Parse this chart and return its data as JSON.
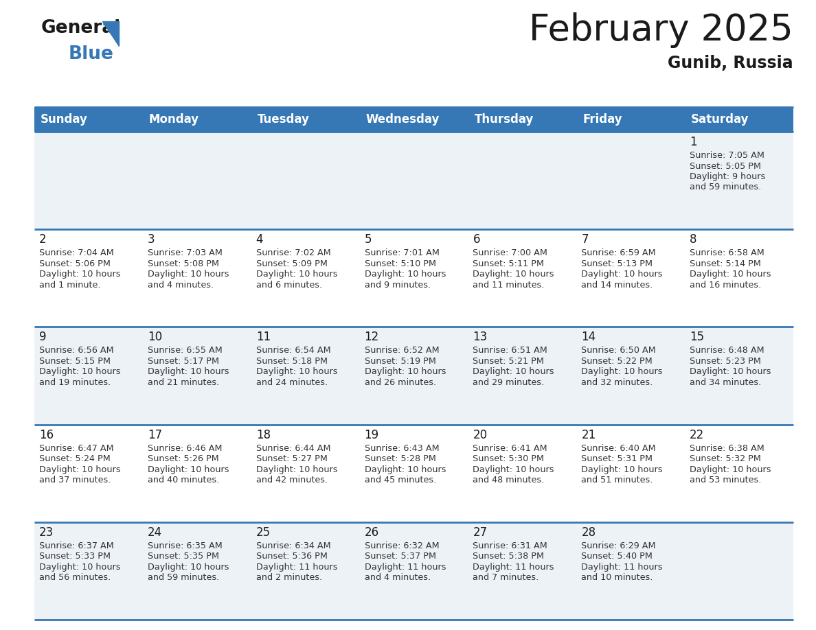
{
  "title": "February 2025",
  "subtitle": "Gunib, Russia",
  "header_bg_color": "#3578b5",
  "header_text_color": "#ffffff",
  "title_color": "#1a1a1a",
  "subtitle_color": "#1a1a1a",
  "cell_bg_light": "#edf2f7",
  "cell_bg_white": "#ffffff",
  "day_number_color": "#1a1a1a",
  "info_text_color": "#333333",
  "border_color": "#3578b5",
  "logo_black": "#1a1a1a",
  "logo_blue": "#3578b5",
  "weekdays": [
    "Sunday",
    "Monday",
    "Tuesday",
    "Wednesday",
    "Thursday",
    "Friday",
    "Saturday"
  ],
  "days": [
    {
      "day": 1,
      "col": 6,
      "row": 0,
      "sunrise": "7:05 AM",
      "sunset": "5:05 PM",
      "daylight_hrs": 9,
      "daylight_min": 59
    },
    {
      "day": 2,
      "col": 0,
      "row": 1,
      "sunrise": "7:04 AM",
      "sunset": "5:06 PM",
      "daylight_hrs": 10,
      "daylight_min": 1
    },
    {
      "day": 3,
      "col": 1,
      "row": 1,
      "sunrise": "7:03 AM",
      "sunset": "5:08 PM",
      "daylight_hrs": 10,
      "daylight_min": 4
    },
    {
      "day": 4,
      "col": 2,
      "row": 1,
      "sunrise": "7:02 AM",
      "sunset": "5:09 PM",
      "daylight_hrs": 10,
      "daylight_min": 6
    },
    {
      "day": 5,
      "col": 3,
      "row": 1,
      "sunrise": "7:01 AM",
      "sunset": "5:10 PM",
      "daylight_hrs": 10,
      "daylight_min": 9
    },
    {
      "day": 6,
      "col": 4,
      "row": 1,
      "sunrise": "7:00 AM",
      "sunset": "5:11 PM",
      "daylight_hrs": 10,
      "daylight_min": 11
    },
    {
      "day": 7,
      "col": 5,
      "row": 1,
      "sunrise": "6:59 AM",
      "sunset": "5:13 PM",
      "daylight_hrs": 10,
      "daylight_min": 14
    },
    {
      "day": 8,
      "col": 6,
      "row": 1,
      "sunrise": "6:58 AM",
      "sunset": "5:14 PM",
      "daylight_hrs": 10,
      "daylight_min": 16
    },
    {
      "day": 9,
      "col": 0,
      "row": 2,
      "sunrise": "6:56 AM",
      "sunset": "5:15 PM",
      "daylight_hrs": 10,
      "daylight_min": 19
    },
    {
      "day": 10,
      "col": 1,
      "row": 2,
      "sunrise": "6:55 AM",
      "sunset": "5:17 PM",
      "daylight_hrs": 10,
      "daylight_min": 21
    },
    {
      "day": 11,
      "col": 2,
      "row": 2,
      "sunrise": "6:54 AM",
      "sunset": "5:18 PM",
      "daylight_hrs": 10,
      "daylight_min": 24
    },
    {
      "day": 12,
      "col": 3,
      "row": 2,
      "sunrise": "6:52 AM",
      "sunset": "5:19 PM",
      "daylight_hrs": 10,
      "daylight_min": 26
    },
    {
      "day": 13,
      "col": 4,
      "row": 2,
      "sunrise": "6:51 AM",
      "sunset": "5:21 PM",
      "daylight_hrs": 10,
      "daylight_min": 29
    },
    {
      "day": 14,
      "col": 5,
      "row": 2,
      "sunrise": "6:50 AM",
      "sunset": "5:22 PM",
      "daylight_hrs": 10,
      "daylight_min": 32
    },
    {
      "day": 15,
      "col": 6,
      "row": 2,
      "sunrise": "6:48 AM",
      "sunset": "5:23 PM",
      "daylight_hrs": 10,
      "daylight_min": 34
    },
    {
      "day": 16,
      "col": 0,
      "row": 3,
      "sunrise": "6:47 AM",
      "sunset": "5:24 PM",
      "daylight_hrs": 10,
      "daylight_min": 37
    },
    {
      "day": 17,
      "col": 1,
      "row": 3,
      "sunrise": "6:46 AM",
      "sunset": "5:26 PM",
      "daylight_hrs": 10,
      "daylight_min": 40
    },
    {
      "day": 18,
      "col": 2,
      "row": 3,
      "sunrise": "6:44 AM",
      "sunset": "5:27 PM",
      "daylight_hrs": 10,
      "daylight_min": 42
    },
    {
      "day": 19,
      "col": 3,
      "row": 3,
      "sunrise": "6:43 AM",
      "sunset": "5:28 PM",
      "daylight_hrs": 10,
      "daylight_min": 45
    },
    {
      "day": 20,
      "col": 4,
      "row": 3,
      "sunrise": "6:41 AM",
      "sunset": "5:30 PM",
      "daylight_hrs": 10,
      "daylight_min": 48
    },
    {
      "day": 21,
      "col": 5,
      "row": 3,
      "sunrise": "6:40 AM",
      "sunset": "5:31 PM",
      "daylight_hrs": 10,
      "daylight_min": 51
    },
    {
      "day": 22,
      "col": 6,
      "row": 3,
      "sunrise": "6:38 AM",
      "sunset": "5:32 PM",
      "daylight_hrs": 10,
      "daylight_min": 53
    },
    {
      "day": 23,
      "col": 0,
      "row": 4,
      "sunrise": "6:37 AM",
      "sunset": "5:33 PM",
      "daylight_hrs": 10,
      "daylight_min": 56
    },
    {
      "day": 24,
      "col": 1,
      "row": 4,
      "sunrise": "6:35 AM",
      "sunset": "5:35 PM",
      "daylight_hrs": 10,
      "daylight_min": 59
    },
    {
      "day": 25,
      "col": 2,
      "row": 4,
      "sunrise": "6:34 AM",
      "sunset": "5:36 PM",
      "daylight_hrs": 11,
      "daylight_min": 2
    },
    {
      "day": 26,
      "col": 3,
      "row": 4,
      "sunrise": "6:32 AM",
      "sunset": "5:37 PM",
      "daylight_hrs": 11,
      "daylight_min": 4
    },
    {
      "day": 27,
      "col": 4,
      "row": 4,
      "sunrise": "6:31 AM",
      "sunset": "5:38 PM",
      "daylight_hrs": 11,
      "daylight_min": 7
    },
    {
      "day": 28,
      "col": 5,
      "row": 4,
      "sunrise": "6:29 AM",
      "sunset": "5:40 PM",
      "daylight_hrs": 11,
      "daylight_min": 10
    }
  ]
}
